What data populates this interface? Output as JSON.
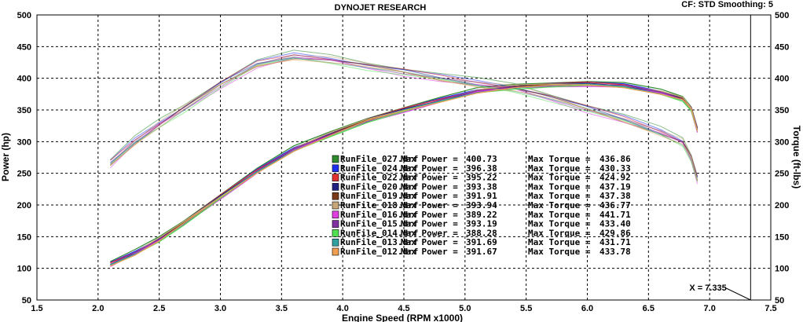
{
  "chart_data": {
    "type": "line",
    "title": "DYNOJET RESEARCH",
    "info": "CF: STD  Smoothing: 5",
    "xlabel": "Engine Speed (RPM x1000)",
    "ylabel_left": "Power (hp)",
    "ylabel_right": "Torque (ft-lbs)",
    "xlim": [
      1.5,
      7.5
    ],
    "ylim": [
      50,
      500
    ],
    "x_ticks": [
      "1.5",
      "2.0",
      "2.5",
      "3.0",
      "3.5",
      "4.0",
      "4.5",
      "5.0",
      "5.5",
      "6.0",
      "6.5",
      "7.0",
      "7.5"
    ],
    "y_ticks": [
      "50",
      "100",
      "150",
      "200",
      "250",
      "300",
      "350",
      "400",
      "450",
      "500"
    ],
    "grid": true,
    "legend_position": "center-right",
    "cursor": {
      "label": "X = 7.335",
      "x": 7.335
    },
    "power_curve_x": [
      2.1,
      2.3,
      2.5,
      2.7,
      3.0,
      3.3,
      3.6,
      3.9,
      4.2,
      4.5,
      4.8,
      5.1,
      5.4,
      5.7,
      6.0,
      6.3,
      6.6,
      6.78,
      6.85,
      6.9
    ],
    "power_curve_y": [
      106,
      124,
      146,
      172,
      213,
      253,
      288,
      312,
      334,
      350,
      365,
      380,
      387,
      390,
      391,
      388,
      378,
      368,
      352,
      318
    ],
    "torque_curve_x": [
      2.1,
      2.3,
      2.5,
      2.7,
      3.0,
      3.3,
      3.6,
      3.9,
      4.2,
      4.5,
      4.8,
      5.1,
      5.4,
      5.7,
      6.0,
      6.3,
      6.6,
      6.78,
      6.85,
      6.9
    ],
    "torque_curve_y": [
      265,
      300,
      328,
      353,
      390,
      422,
      435,
      430,
      420,
      410,
      400,
      392,
      385,
      370,
      352,
      335,
      315,
      300,
      275,
      240
    ],
    "series": [
      {
        "name": "RunFile_027.drf",
        "max_power": "400.73",
        "max_torque": "436.86",
        "color": "#2e8b2e",
        "offset": 4.0
      },
      {
        "name": "RunFile_024.drf",
        "max_power": "396.38",
        "max_torque": "430.33",
        "color": "#1f2ff0",
        "offset": 2.0
      },
      {
        "name": "RunFile_022.drf",
        "max_power": "395.22",
        "max_torque": "424.92",
        "color": "#e03030",
        "offset": 1.5
      },
      {
        "name": "RunFile_020.drf",
        "max_power": "393.38",
        "max_torque": "437.19",
        "color": "#202080",
        "offset": 0.5
      },
      {
        "name": "RunFile_019.drf",
        "max_power": "391.91",
        "max_torque": "437.38",
        "color": "#7a3a1a",
        "offset": -1.0
      },
      {
        "name": "RunFile_018.drf",
        "max_power": "393.94",
        "max_torque": "436.77",
        "color": "#c8a878",
        "offset": 1.0
      },
      {
        "name": "RunFile_016.drf",
        "max_power": "389.22",
        "max_torque": "441.71",
        "color": "#e040e0",
        "offset": -2.5
      },
      {
        "name": "RunFile_015.drf",
        "max_power": "393.19",
        "max_torque": "433.40",
        "color": "#8030a0",
        "offset": -0.5
      },
      {
        "name": "RunFile_014.drf",
        "max_power": "388.28",
        "max_torque": "429.86",
        "color": "#50e050",
        "offset": -3.0
      },
      {
        "name": "RunFile_013.drf",
        "max_power": "391.69",
        "max_torque": "431.71",
        "color": "#30a0a0",
        "offset": -1.5
      },
      {
        "name": "RunFile_012.drf",
        "max_power": "391.67",
        "max_torque": "433.78",
        "color": "#f0a050",
        "offset": -2.0
      }
    ],
    "legend_labels": {
      "power": "Max Power =",
      "torque": "Max Torque ="
    }
  }
}
